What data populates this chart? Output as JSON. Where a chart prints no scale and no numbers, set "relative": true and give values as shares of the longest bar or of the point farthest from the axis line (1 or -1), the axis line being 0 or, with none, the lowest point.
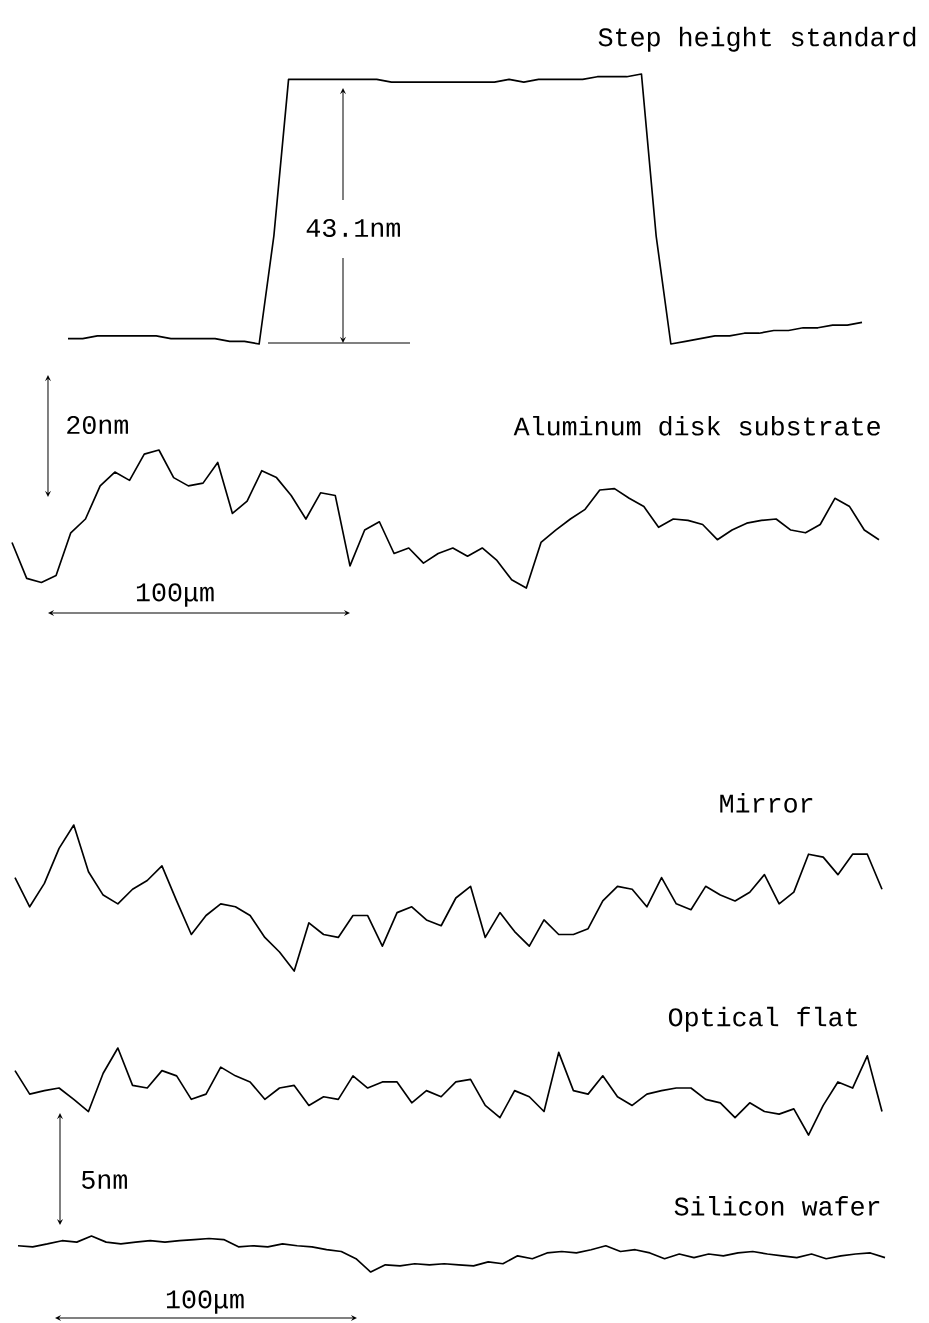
{
  "chart_data": [
    {
      "type": "line",
      "title": "Step height standard",
      "relative": true,
      "annotations": [
        "43.1nm"
      ],
      "categories": [
        null,
        null,
        null,
        null,
        null,
        null,
        null,
        null,
        null,
        null,
        null,
        null,
        null,
        null,
        null,
        null,
        null,
        null,
        null,
        null,
        null,
        null,
        null,
        null,
        null,
        null,
        null,
        null,
        null,
        null,
        null,
        null,
        null,
        null,
        null,
        null,
        null,
        null,
        null,
        null,
        null,
        null,
        null,
        null,
        null,
        null,
        null,
        null,
        null,
        null,
        null,
        null,
        null,
        null,
        null
      ],
      "series": [
        {
          "color": "#000000",
          "values": [
            0.02,
            0.02,
            0.03,
            0.03,
            0.03,
            0.03,
            0.03,
            0.02,
            0.02,
            0.02,
            0.02,
            0.01,
            0.01,
            0,
            0.4,
            0.98,
            0.98,
            0.98,
            0.98,
            0.98,
            0.98,
            0.98,
            0.97,
            0.97,
            0.97,
            0.97,
            0.97,
            0.97,
            0.97,
            0.97,
            0.98,
            0.97,
            0.98,
            0.98,
            0.98,
            0.98,
            0.99,
            0.99,
            0.99,
            1,
            0.4,
            0,
            0.01,
            0.02,
            0.03,
            0.03,
            0.04,
            0.04,
            0.05,
            0.05,
            0.06,
            0.06,
            0.07,
            0.07,
            0.08
          ]
        }
      ]
    },
    {
      "type": "line",
      "title": "Aluminum disk substrate",
      "relative": true,
      "annotations": [
        "20nm",
        "100μm"
      ],
      "categories": [
        null,
        null,
        null,
        null,
        null,
        null,
        null,
        null,
        null,
        null,
        null,
        null,
        null,
        null,
        null,
        null,
        null,
        null,
        null,
        null,
        null,
        null,
        null,
        null,
        null,
        null,
        null,
        null,
        null,
        null,
        null,
        null,
        null,
        null,
        null,
        null,
        null,
        null,
        null,
        null,
        null,
        null,
        null,
        null,
        null,
        null,
        null,
        null,
        null,
        null,
        null,
        null,
        null,
        null,
        null,
        null,
        null,
        null,
        null,
        null
      ],
      "series": [
        {
          "color": "#000000",
          "values": [
            0.33,
            0.07,
            0.04,
            0.09,
            0.4,
            0.5,
            0.74,
            0.84,
            0.78,
            0.97,
            1,
            0.8,
            0.74,
            0.76,
            0.91,
            0.54,
            0.63,
            0.85,
            0.8,
            0.67,
            0.5,
            0.69,
            0.67,
            0.16,
            0.42,
            0.48,
            0.25,
            0.29,
            0.18,
            0.25,
            0.29,
            0.23,
            0.29,
            0.2,
            0.06,
            0,
            0.33,
            0.42,
            0.5,
            0.57,
            0.71,
            0.72,
            0.65,
            0.59,
            0.44,
            0.5,
            0.49,
            0.46,
            0.35,
            0.42,
            0.47,
            0.49,
            0.5,
            0.42,
            0.4,
            0.46,
            0.65,
            0.59,
            0.42,
            0.35
          ]
        }
      ]
    },
    {
      "type": "line",
      "title": "Mirror",
      "relative": true,
      "categories": [
        null,
        null,
        null,
        null,
        null,
        null,
        null,
        null,
        null,
        null,
        null,
        null,
        null,
        null,
        null,
        null,
        null,
        null,
        null,
        null,
        null,
        null,
        null,
        null,
        null,
        null,
        null,
        null,
        null,
        null,
        null,
        null,
        null,
        null,
        null,
        null,
        null,
        null,
        null,
        null,
        null,
        null,
        null,
        null,
        null,
        null,
        null,
        null,
        null,
        null,
        null,
        null,
        null,
        null,
        null,
        null,
        null,
        null,
        null,
        null
      ],
      "series": [
        {
          "color": "#000000",
          "values": [
            0.64,
            0.44,
            0.6,
            0.84,
            1,
            0.68,
            0.52,
            0.46,
            0.56,
            0.62,
            0.72,
            0.48,
            0.25,
            0.38,
            0.46,
            0.44,
            0.38,
            0.23,
            0.13,
            0,
            0.33,
            0.25,
            0.23,
            0.38,
            0.38,
            0.17,
            0.4,
            0.44,
            0.35,
            0.31,
            0.5,
            0.58,
            0.23,
            0.4,
            0.27,
            0.17,
            0.35,
            0.25,
            0.25,
            0.29,
            0.48,
            0.58,
            0.56,
            0.44,
            0.64,
            0.46,
            0.42,
            0.58,
            0.52,
            0.48,
            0.54,
            0.66,
            0.46,
            0.54,
            0.8,
            0.78,
            0.66,
            0.8,
            0.8,
            0.56
          ]
        }
      ]
    },
    {
      "type": "line",
      "title": "Optical flat",
      "relative": true,
      "categories": [
        null,
        null,
        null,
        null,
        null,
        null,
        null,
        null,
        null,
        null,
        null,
        null,
        null,
        null,
        null,
        null,
        null,
        null,
        null,
        null,
        null,
        null,
        null,
        null,
        null,
        null,
        null,
        null,
        null,
        null,
        null,
        null,
        null,
        null,
        null,
        null,
        null,
        null,
        null,
        null,
        null,
        null,
        null,
        null,
        null,
        null,
        null,
        null,
        null,
        null,
        null,
        null,
        null,
        null,
        null,
        null,
        null,
        null,
        null,
        null
      ],
      "series": [
        {
          "color": "#000000",
          "values": [
            0.74,
            0.47,
            0.51,
            0.54,
            0.41,
            0.27,
            0.71,
            1,
            0.57,
            0.54,
            0.74,
            0.68,
            0.41,
            0.47,
            0.78,
            0.68,
            0.61,
            0.41,
            0.54,
            0.57,
            0.34,
            0.44,
            0.41,
            0.68,
            0.54,
            0.61,
            0.61,
            0.37,
            0.51,
            0.44,
            0.61,
            0.64,
            0.34,
            0.2,
            0.51,
            0.44,
            0.27,
            0.95,
            0.51,
            0.47,
            0.68,
            0.44,
            0.34,
            0.47,
            0.51,
            0.54,
            0.54,
            0.41,
            0.37,
            0.2,
            0.37,
            0.27,
            0.24,
            0.3,
            0,
            0.34,
            0.61,
            0.54,
            0.91,
            0.27
          ]
        }
      ]
    },
    {
      "type": "line",
      "title": "Silicon wafer",
      "relative": true,
      "annotations": [
        "5nm",
        "100μm"
      ],
      "categories": [
        null,
        null,
        null,
        null,
        null,
        null,
        null,
        null,
        null,
        null,
        null,
        null,
        null,
        null,
        null,
        null,
        null,
        null,
        null,
        null,
        null,
        null,
        null,
        null,
        null,
        null,
        null,
        null,
        null,
        null,
        null,
        null,
        null,
        null,
        null,
        null,
        null,
        null,
        null,
        null,
        null,
        null,
        null,
        null,
        null,
        null,
        null,
        null,
        null,
        null,
        null,
        null,
        null,
        null,
        null,
        null,
        null,
        null,
        null,
        null
      ],
      "series": [
        {
          "color": "#000000",
          "values": [
            0.73,
            0.7,
            0.78,
            0.87,
            0.83,
            1,
            0.83,
            0.78,
            0.83,
            0.87,
            0.83,
            0.87,
            0.9,
            0.93,
            0.9,
            0.7,
            0.73,
            0.7,
            0.78,
            0.73,
            0.7,
            0.62,
            0.57,
            0.37,
            0,
            0.2,
            0.17,
            0.23,
            0.2,
            0.23,
            0.2,
            0.17,
            0.28,
            0.23,
            0.45,
            0.37,
            0.53,
            0.57,
            0.53,
            0.62,
            0.73,
            0.57,
            0.62,
            0.53,
            0.37,
            0.5,
            0.4,
            0.5,
            0.45,
            0.53,
            0.57,
            0.5,
            0.45,
            0.4,
            0.5,
            0.37,
            0.45,
            0.5,
            0.53,
            0.4
          ]
        }
      ]
    }
  ]
}
